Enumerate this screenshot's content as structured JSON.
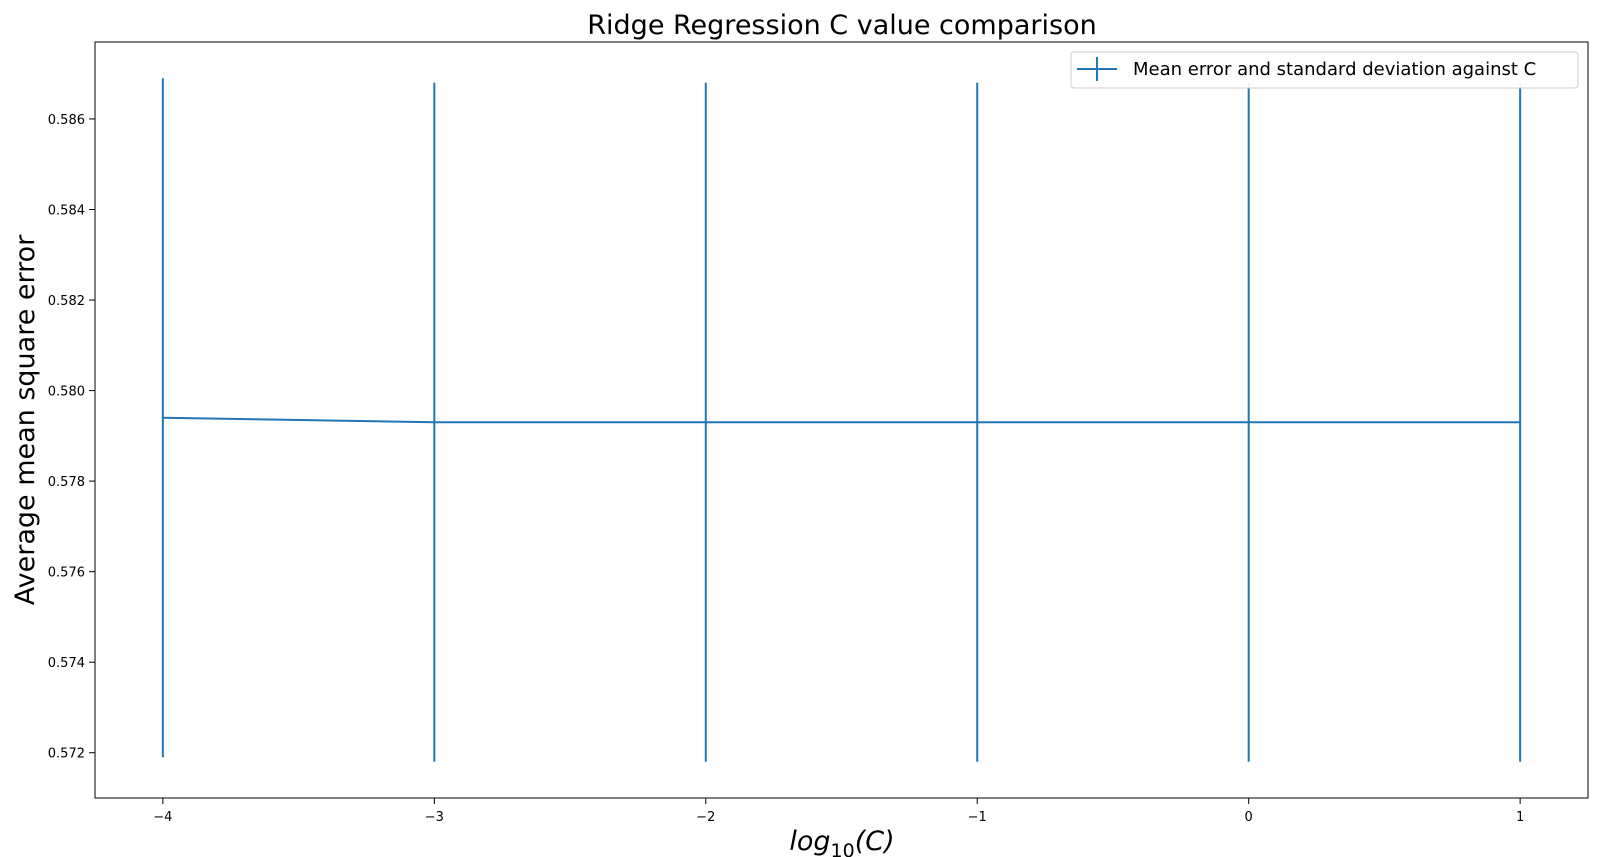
{
  "chart_data": {
    "type": "line",
    "title": "Ridge Regression C value comparison",
    "xlabel": {
      "base": "log",
      "subscript": "10",
      "arg": "(C)"
    },
    "ylabel": "Average mean square error",
    "xlim": [
      -4.25,
      1.25
    ],
    "ylim": [
      0.571,
      0.5877
    ],
    "x_ticks": [
      -4,
      -3,
      -2,
      -1,
      0,
      1
    ],
    "x_tick_labels": [
      "−4",
      "−3",
      "−2",
      "−1",
      "0",
      "1"
    ],
    "y_ticks": [
      0.572,
      0.574,
      0.576,
      0.578,
      0.58,
      0.582,
      0.584,
      0.586
    ],
    "y_tick_labels": [
      "0.572",
      "0.574",
      "0.576",
      "0.578",
      "0.580",
      "0.582",
      "0.584",
      "0.586"
    ],
    "grid": false,
    "legend_position": "top-right",
    "series": [
      {
        "name": "Mean error and standard deviation against C",
        "color": "#1f77b4",
        "x": [
          -4,
          -3,
          -2,
          -1,
          0,
          1
        ],
        "y": [
          0.5794,
          0.5793,
          0.5793,
          0.5793,
          0.5793,
          0.5793
        ],
        "error": [
          0.0075,
          0.0075,
          0.0075,
          0.0075,
          0.0075,
          0.0075
        ]
      }
    ]
  }
}
